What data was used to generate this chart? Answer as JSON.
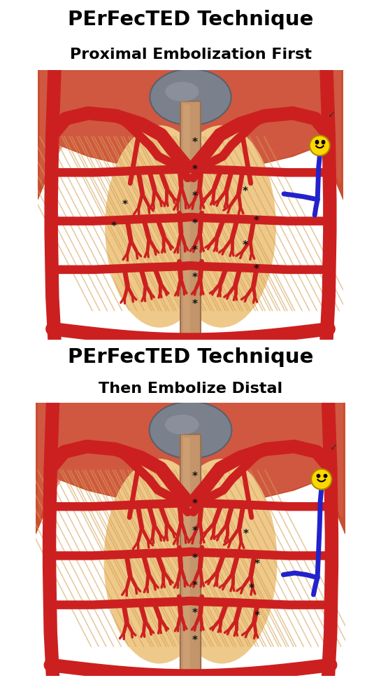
{
  "title1_line1": "PErFecTED Technique",
  "title1_line2": "Proximal Embolization First",
  "title2_line1": "PErFecTED Technique",
  "title2_line2": "Then Embolize Distal",
  "bg_color": "#ffffff",
  "title_color": "#000000",
  "title_fontsize": 21,
  "subtitle_fontsize": 16,
  "prostate_color": "#EEC98A",
  "prostate_edge": "#D4A860",
  "artery_color": "#CC2020",
  "artery_edge": "#AA1515",
  "catheter_color": "#2222CC",
  "smiley_color": "#FFD700",
  "asterisk_color": "#111111",
  "bladder_color": "#7A7A8A",
  "bladder_edge": "#5A5A7A",
  "urethra_color": "#C4956A",
  "urethra_edge": "#9A7050",
  "tissue_color": "#C84040",
  "tissue_light": "#E07060"
}
